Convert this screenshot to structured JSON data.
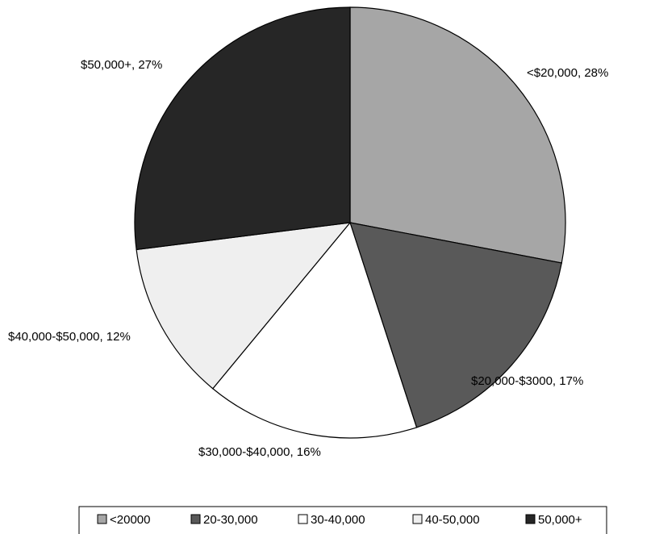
{
  "chart_data": {
    "type": "pie",
    "title": "",
    "categories": [
      "<20000",
      "20-30,000",
      "30-40,000",
      "40-50,000",
      "50,000+"
    ],
    "values": [
      28,
      17,
      16,
      12,
      27
    ],
    "slice_labels": [
      "<$20,000, 28%",
      "$20,000-$3000, 17%",
      "$30,000-$40,000, 16%",
      "$40,000-$50,000, 12%",
      "$50,000+, 27%"
    ],
    "colors": [
      "#a6a6a6",
      "#595959",
      "#ffffff",
      "#efefef",
      "#262626"
    ],
    "start": "12 o'clock",
    "direction": "clockwise",
    "legend_position": "bottom"
  }
}
